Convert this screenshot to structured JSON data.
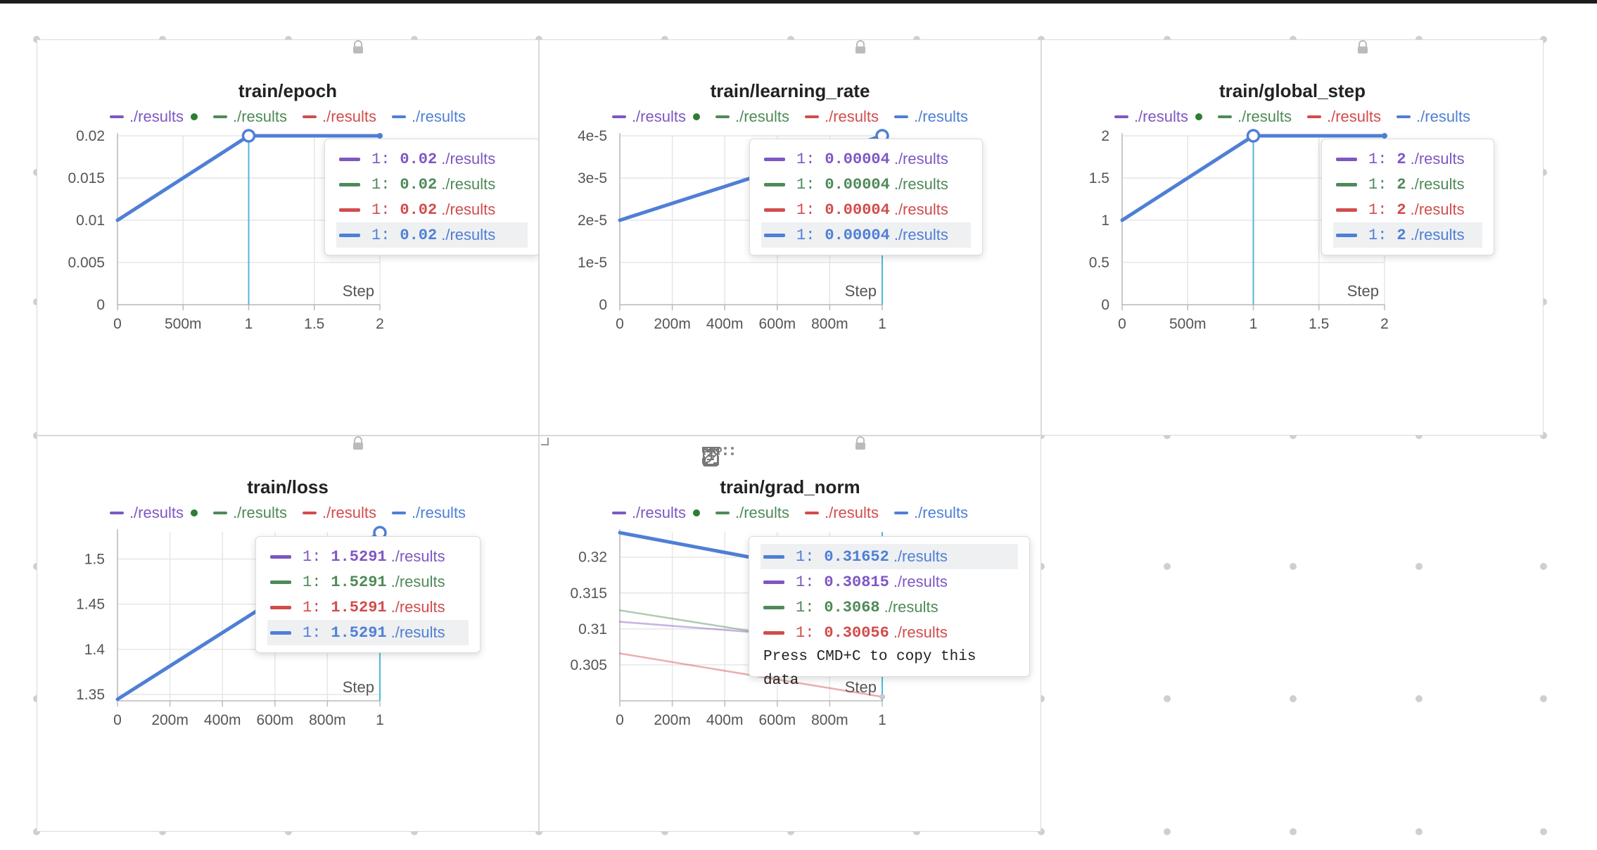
{
  "colors": {
    "purple": "#7e57c2",
    "green": "#4e8a58",
    "red": "#d24c4c",
    "blue": "#4f7fd6",
    "cursor": "#4fb8d6",
    "grid": "#e6e6e6",
    "axis": "#bbbbbb"
  },
  "legend_entries": [
    {
      "label": "./results",
      "color": "#7e57c2",
      "dot": true
    },
    {
      "label": "./results",
      "color": "#4e8a58",
      "dot": false
    },
    {
      "label": "./results",
      "color": "#d24c4c",
      "dot": false
    },
    {
      "label": "./results",
      "color": "#4f7fd6",
      "dot": false
    }
  ],
  "step_label": "Step",
  "lock_icon": "lock-icon",
  "toolbar_icons": [
    "drag-handle-icon",
    "clipboard-icon",
    "share-icon",
    "edit-icon",
    "fullscreen-icon",
    "more-options-icon"
  ],
  "chart_data": [
    {
      "type": "line",
      "title": "train/epoch",
      "xlabel": "Step",
      "xlim": [
        0,
        2
      ],
      "ylim": [
        0,
        0.02
      ],
      "xticks": [
        {
          "v": 0,
          "l": "0"
        },
        {
          "v": 0.5,
          "l": "500m"
        },
        {
          "v": 1,
          "l": "1"
        },
        {
          "v": 1.5,
          "l": "1.5"
        },
        {
          "v": 2,
          "l": "2"
        }
      ],
      "yticks": [
        {
          "v": 0,
          "l": "0"
        },
        {
          "v": 0.005,
          "l": "0.005"
        },
        {
          "v": 0.01,
          "l": "0.01"
        },
        {
          "v": 0.015,
          "l": "0.015"
        },
        {
          "v": 0.02,
          "l": "0.02"
        }
      ],
      "series": [
        {
          "name": "./results",
          "color": "#4f7fd6",
          "x": [
            0,
            1,
            2
          ],
          "y": [
            0.01,
            0.02,
            0.02
          ],
          "width": 5,
          "opacity": 1
        }
      ],
      "cursor_x": 1,
      "hover_points": [
        {
          "x": 1,
          "y": 0.02
        }
      ],
      "end_dots": [
        {
          "x": 2,
          "y": 0.02,
          "color": "#4f7fd6"
        }
      ],
      "tooltip": {
        "rows": [
          {
            "step": "1:",
            "value": "0.02",
            "name": "./results",
            "color": "#7e57c2",
            "hl": false
          },
          {
            "step": "1:",
            "value": "0.02",
            "name": "./results",
            "color": "#4e8a58",
            "hl": false
          },
          {
            "step": "1:",
            "value": "0.02",
            "name": "./results",
            "color": "#d24c4c",
            "hl": false
          },
          {
            "step": "1:",
            "value": "0.02",
            "name": "./results",
            "color": "#4f7fd6",
            "hl": true
          }
        ],
        "footer": ""
      }
    },
    {
      "type": "line",
      "title": "train/learning_rate",
      "xlabel": "Step",
      "xlim": [
        0,
        1
      ],
      "ylim": [
        0,
        4e-05
      ],
      "xticks": [
        {
          "v": 0,
          "l": "0"
        },
        {
          "v": 0.2,
          "l": "200m"
        },
        {
          "v": 0.4,
          "l": "400m"
        },
        {
          "v": 0.6,
          "l": "600m"
        },
        {
          "v": 0.8,
          "l": "800m"
        },
        {
          "v": 1,
          "l": "1"
        }
      ],
      "yticks": [
        {
          "v": 0,
          "l": "0"
        },
        {
          "v": 1e-05,
          "l": "1e-5"
        },
        {
          "v": 2e-05,
          "l": "2e-5"
        },
        {
          "v": 3e-05,
          "l": "3e-5"
        },
        {
          "v": 4e-05,
          "l": "4e-5"
        }
      ],
      "series": [
        {
          "name": "./results",
          "color": "#4f7fd6",
          "x": [
            0,
            1
          ],
          "y": [
            2e-05,
            4e-05
          ],
          "width": 5,
          "opacity": 1
        }
      ],
      "cursor_x": 1,
      "hover_points": [
        {
          "x": 1,
          "y": 4e-05
        }
      ],
      "end_dots": [],
      "tooltip": {
        "rows": [
          {
            "step": "1:",
            "value": "0.00004",
            "name": "./results",
            "color": "#7e57c2",
            "hl": false
          },
          {
            "step": "1:",
            "value": "0.00004",
            "name": "./results",
            "color": "#4e8a58",
            "hl": false
          },
          {
            "step": "1:",
            "value": "0.00004",
            "name": "./results",
            "color": "#d24c4c",
            "hl": false
          },
          {
            "step": "1:",
            "value": "0.00004",
            "name": "./results",
            "color": "#4f7fd6",
            "hl": true
          }
        ],
        "footer": ""
      }
    },
    {
      "type": "line",
      "title": "train/global_step",
      "xlabel": "Step",
      "xlim": [
        0,
        2
      ],
      "ylim": [
        0,
        2
      ],
      "xticks": [
        {
          "v": 0,
          "l": "0"
        },
        {
          "v": 0.5,
          "l": "500m"
        },
        {
          "v": 1,
          "l": "1"
        },
        {
          "v": 1.5,
          "l": "1.5"
        },
        {
          "v": 2,
          "l": "2"
        }
      ],
      "yticks": [
        {
          "v": 0,
          "l": "0"
        },
        {
          "v": 0.5,
          "l": "0.5"
        },
        {
          "v": 1,
          "l": "1"
        },
        {
          "v": 1.5,
          "l": "1.5"
        },
        {
          "v": 2,
          "l": "2"
        }
      ],
      "series": [
        {
          "name": "./results",
          "color": "#4f7fd6",
          "x": [
            0,
            1,
            2
          ],
          "y": [
            1,
            2,
            2
          ],
          "width": 5,
          "opacity": 1
        }
      ],
      "cursor_x": 1,
      "hover_points": [
        {
          "x": 1,
          "y": 2
        }
      ],
      "end_dots": [
        {
          "x": 2,
          "y": 2,
          "color": "#4f7fd6"
        }
      ],
      "tooltip": {
        "rows": [
          {
            "step": "1:",
            "value": "2",
            "name": "./results",
            "color": "#7e57c2",
            "hl": false
          },
          {
            "step": "1:",
            "value": "2",
            "name": "./results",
            "color": "#4e8a58",
            "hl": false
          },
          {
            "step": "1:",
            "value": "2",
            "name": "./results",
            "color": "#d24c4c",
            "hl": false
          },
          {
            "step": "1:",
            "value": "2",
            "name": "./results",
            "color": "#4f7fd6",
            "hl": true
          }
        ],
        "footer": ""
      }
    },
    {
      "type": "line",
      "title": "train/loss",
      "xlabel": "Step",
      "xlim": [
        0,
        1
      ],
      "ylim": [
        1.343,
        1.53
      ],
      "xticks": [
        {
          "v": 0,
          "l": "0"
        },
        {
          "v": 0.2,
          "l": "200m"
        },
        {
          "v": 0.4,
          "l": "400m"
        },
        {
          "v": 0.6,
          "l": "600m"
        },
        {
          "v": 0.8,
          "l": "800m"
        },
        {
          "v": 1,
          "l": "1"
        }
      ],
      "yticks": [
        {
          "v": 1.35,
          "l": "1.35"
        },
        {
          "v": 1.4,
          "l": "1.4"
        },
        {
          "v": 1.45,
          "l": "1.45"
        },
        {
          "v": 1.5,
          "l": "1.5"
        }
      ],
      "series": [
        {
          "name": "./results",
          "color": "#4f7fd6",
          "x": [
            0,
            1
          ],
          "y": [
            1.3447,
            1.5291
          ],
          "width": 5,
          "opacity": 1
        }
      ],
      "cursor_x": 1,
      "hover_points": [
        {
          "x": 1,
          "y": 1.5291
        }
      ],
      "end_dots": [],
      "tooltip": {
        "rows": [
          {
            "step": "1:",
            "value": "1.5291",
            "name": "./results",
            "color": "#7e57c2",
            "hl": false
          },
          {
            "step": "1:",
            "value": "1.5291",
            "name": "./results",
            "color": "#4e8a58",
            "hl": false
          },
          {
            "step": "1:",
            "value": "1.5291",
            "name": "./results",
            "color": "#d24c4c",
            "hl": false
          },
          {
            "step": "1:",
            "value": "1.5291",
            "name": "./results",
            "color": "#4f7fd6",
            "hl": true
          }
        ],
        "footer": ""
      }
    },
    {
      "type": "line",
      "title": "train/grad_norm",
      "xlabel": "Step",
      "xlim": [
        0,
        1
      ],
      "ylim": [
        0.3,
        0.3235
      ],
      "xticks": [
        {
          "v": 0,
          "l": "0"
        },
        {
          "v": 0.2,
          "l": "200m"
        },
        {
          "v": 0.4,
          "l": "400m"
        },
        {
          "v": 0.6,
          "l": "600m"
        },
        {
          "v": 0.8,
          "l": "800m"
        },
        {
          "v": 1,
          "l": "1"
        }
      ],
      "yticks": [
        {
          "v": 0.305,
          "l": "0.305"
        },
        {
          "v": 0.31,
          "l": "0.31"
        },
        {
          "v": 0.315,
          "l": "0.315"
        },
        {
          "v": 0.32,
          "l": "0.32"
        }
      ],
      "series": [
        {
          "name": "./results",
          "color": "#7e57c2",
          "x": [
            0,
            1
          ],
          "y": [
            0.311,
            0.30815
          ],
          "width": 2.5,
          "opacity": 0.45
        },
        {
          "name": "./results",
          "color": "#4e8a58",
          "x": [
            0,
            1
          ],
          "y": [
            0.3126,
            0.3068
          ],
          "width": 2.5,
          "opacity": 0.45
        },
        {
          "name": "./results",
          "color": "#d24c4c",
          "x": [
            0,
            1
          ],
          "y": [
            0.3066,
            0.30056
          ],
          "width": 2.5,
          "opacity": 0.45
        },
        {
          "name": "./results",
          "color": "#4f7fd6",
          "x": [
            0,
            1
          ],
          "y": [
            0.3234,
            0.31652
          ],
          "width": 5,
          "opacity": 1
        }
      ],
      "cursor_x": 1,
      "hover_points": [],
      "end_dots": [
        {
          "x": 1,
          "y": 0.30815,
          "color": "#9f8ccf"
        },
        {
          "x": 1,
          "y": 0.3068,
          "color": "#8fbf98"
        },
        {
          "x": 1,
          "y": 0.30056,
          "color": "#c9c9c9"
        }
      ],
      "tooltip": {
        "rows": [
          {
            "step": "1:",
            "value": "0.31652",
            "name": "./results",
            "color": "#4f7fd6",
            "hl": true
          },
          {
            "step": "1:",
            "value": "0.30815",
            "name": "./results",
            "color": "#7e57c2",
            "hl": false
          },
          {
            "step": "1:",
            "value": "0.3068",
            "name": "./results",
            "color": "#4e8a58",
            "hl": false
          },
          {
            "step": "1:",
            "value": "0.30056",
            "name": "./results",
            "color": "#d24c4c",
            "hl": false
          }
        ],
        "footer": "Press CMD+C to copy this data"
      }
    }
  ]
}
